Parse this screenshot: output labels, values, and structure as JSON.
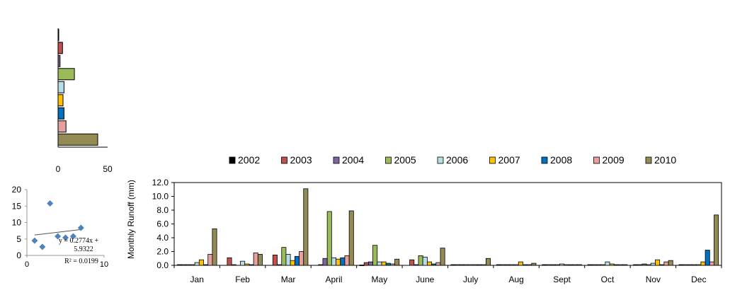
{
  "chart_data": [
    {
      "type": "bar",
      "orientation": "horizontal",
      "categories": [
        "2002",
        "2003",
        "2004",
        "2005",
        "2006",
        "2007",
        "2008",
        "2009",
        "2010"
      ],
      "values": [
        0.5,
        4.5,
        2.0,
        16.5,
        6.0,
        5.0,
        6.0,
        8.0,
        40.0
      ],
      "xlim": [
        0,
        50
      ],
      "xticks": [
        "0",
        "50"
      ],
      "colors": [
        "#000000",
        "#c0504d",
        "#8064a2",
        "#9bbb59",
        "#b7dee8",
        "#ffc000",
        "#0070c0",
        "#e6a0a0",
        "#948a54"
      ]
    },
    {
      "type": "scatter",
      "points": [
        [
          1,
          4.5
        ],
        [
          2,
          2.6
        ],
        [
          3,
          15.8
        ],
        [
          4,
          5.8
        ],
        [
          5,
          5.4
        ],
        [
          6,
          5.8
        ],
        [
          7,
          8.4
        ]
      ],
      "trendline": {
        "slope": 0.2774,
        "intercept": 5.9322
      },
      "equation_lines": [
        "y = 0.2774x +",
        "5.9322"
      ],
      "r2_label": "R² = 0.0199",
      "xlim": [
        0,
        10
      ],
      "ylim": [
        0,
        20
      ],
      "xticks": [
        "0",
        "10"
      ],
      "yticks": [
        "0",
        "5",
        "10",
        "15",
        "20"
      ],
      "marker_color": "#4f81bd"
    },
    {
      "type": "bar",
      "categories": [
        "Jan",
        "Feb",
        "Mar",
        "April",
        "May",
        "June",
        "July",
        "Aug",
        "Sept",
        "Oct",
        "Nov",
        "Dec"
      ],
      "ylabel": "Monthly  Runoff (mm)",
      "ylim": [
        0,
        12
      ],
      "yticks": [
        "0.0",
        "2.0",
        "4.0",
        "6.0",
        "8.0",
        "10.0",
        "12.0"
      ],
      "legend_position": "top",
      "series": [
        {
          "name": "2002",
          "color": "#000000",
          "values": [
            0.1,
            0,
            0,
            0,
            0.05,
            0,
            0.1,
            0.1,
            0.1,
            0.1,
            0.1,
            0.1
          ]
        },
        {
          "name": "2003",
          "color": "#c0504d",
          "values": [
            0.1,
            1.1,
            1.5,
            0.1,
            0.4,
            0.8,
            0.1,
            0.1,
            0.1,
            0.1,
            0.1,
            0.1
          ]
        },
        {
          "name": "2004",
          "color": "#8064a2",
          "values": [
            0.1,
            0.1,
            0.1,
            1.0,
            0.5,
            0.1,
            0.1,
            0.1,
            0.1,
            0.1,
            0.2,
            0.1
          ]
        },
        {
          "name": "2005",
          "color": "#9bbb59",
          "values": [
            0.1,
            0,
            2.6,
            7.8,
            2.9,
            1.4,
            0.1,
            0.1,
            0.1,
            0.1,
            0.1,
            0.1
          ]
        },
        {
          "name": "2006",
          "color": "#b7dee8",
          "values": [
            0.4,
            0.6,
            1.6,
            1.1,
            0.5,
            1.2,
            0.1,
            0.1,
            0.2,
            0.5,
            0.3,
            0.1
          ]
        },
        {
          "name": "2007",
          "color": "#ffc000",
          "values": [
            0.8,
            0.2,
            0.7,
            0.9,
            0.5,
            0.5,
            0.1,
            0.5,
            0.1,
            0.2,
            0.8,
            0.5
          ]
        },
        {
          "name": "2008",
          "color": "#0070c0",
          "values": [
            0.1,
            0.1,
            1.3,
            1.1,
            0.3,
            0.2,
            0.1,
            0.1,
            0.1,
            0.1,
            0.1,
            2.2
          ]
        },
        {
          "name": "2009",
          "color": "#e6a0a0",
          "values": [
            1.6,
            1.8,
            2.0,
            1.4,
            0.2,
            0.4,
            0.1,
            0.1,
            0.1,
            0.1,
            0.5,
            0.5
          ]
        },
        {
          "name": "2010",
          "color": "#948a54",
          "values": [
            5.3,
            1.6,
            11.1,
            7.9,
            0.9,
            2.5,
            1.0,
            0.3,
            0.1,
            0.1,
            0.7,
            7.3
          ]
        }
      ]
    }
  ]
}
